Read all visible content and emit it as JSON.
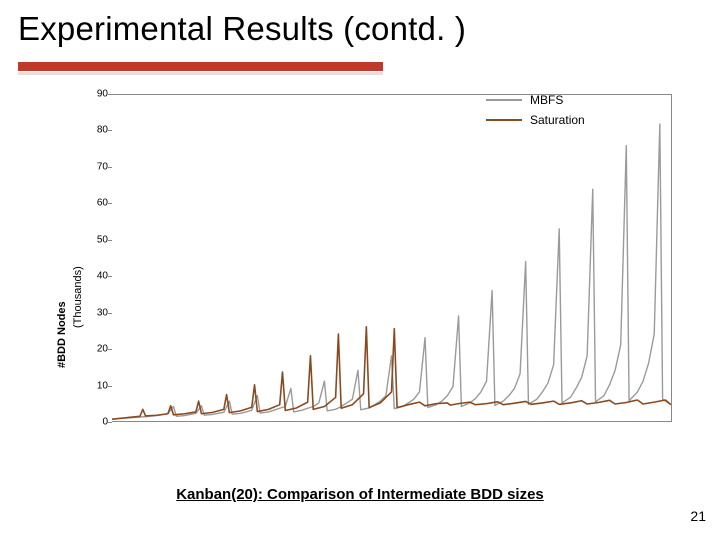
{
  "slide": {
    "title": "Experimental Results (contd. )",
    "caption": "Kanban(20): Comparison of Intermediate BDD sizes",
    "page_number": "21",
    "title_fontsize": 33,
    "underline_color": "#c0392b"
  },
  "chart": {
    "type": "line",
    "background_color": "#ffffff",
    "border_color": "#888888",
    "ylabel_main": "#BDD Nodes",
    "ylabel_sub": "(Thousands)",
    "label_fontsize": 11,
    "ylim": [
      0,
      90
    ],
    "ytick_step": 10,
    "yticks": [
      0,
      10,
      20,
      30,
      40,
      50,
      60,
      70,
      80,
      90
    ],
    "xlim": [
      0,
      100
    ],
    "legend": {
      "position": "top-right",
      "items": [
        {
          "label": "MBFS",
          "color": "#9a9a9a"
        },
        {
          "label": "Saturation",
          "color": "#8a4a1f"
        }
      ]
    },
    "series": [
      {
        "name": "MBFS",
        "color": "#9a9a9a",
        "line_width": 1.4,
        "points": [
          [
            0,
            0.5
          ],
          [
            4,
            1
          ],
          [
            6,
            1.2
          ],
          [
            8,
            1.5
          ],
          [
            10,
            2
          ],
          [
            11,
            4
          ],
          [
            11.5,
            1.3
          ],
          [
            13,
            1.5
          ],
          [
            14,
            1.8
          ],
          [
            15,
            2.1
          ],
          [
            16,
            4.2
          ],
          [
            16.5,
            1.6
          ],
          [
            18,
            1.8
          ],
          [
            19,
            2.1
          ],
          [
            20,
            2.4
          ],
          [
            21,
            5.5
          ],
          [
            21.5,
            1.9
          ],
          [
            23,
            2.1
          ],
          [
            24,
            2.5
          ],
          [
            25,
            3
          ],
          [
            26,
            7
          ],
          [
            26.5,
            2.2
          ],
          [
            28,
            2.5
          ],
          [
            29,
            3
          ],
          [
            30,
            3.5
          ],
          [
            31,
            4
          ],
          [
            32,
            9
          ],
          [
            32.5,
            2.5
          ],
          [
            34,
            3
          ],
          [
            35,
            3.5
          ],
          [
            36,
            4
          ],
          [
            37,
            5
          ],
          [
            38,
            11
          ],
          [
            38.5,
            2.8
          ],
          [
            40,
            3.2
          ],
          [
            41,
            4
          ],
          [
            42,
            5
          ],
          [
            43,
            6
          ],
          [
            44,
            14
          ],
          [
            44.5,
            3.1
          ],
          [
            46,
            3.6
          ],
          [
            47,
            4.5
          ],
          [
            48,
            5.5
          ],
          [
            49,
            7
          ],
          [
            50,
            18
          ],
          [
            50.5,
            3.4
          ],
          [
            52,
            4
          ],
          [
            53,
            5
          ],
          [
            54,
            6
          ],
          [
            55,
            8
          ],
          [
            56,
            23
          ],
          [
            56.5,
            3.7
          ],
          [
            58,
            4.5
          ],
          [
            59,
            5.5
          ],
          [
            60,
            7
          ],
          [
            61,
            9.5
          ],
          [
            62,
            29
          ],
          [
            62.5,
            4
          ],
          [
            64,
            5
          ],
          [
            65,
            6.2
          ],
          [
            66,
            8
          ],
          [
            67,
            11
          ],
          [
            68,
            36
          ],
          [
            68.5,
            4.3
          ],
          [
            70,
            5.5
          ],
          [
            71,
            7
          ],
          [
            72,
            9
          ],
          [
            73,
            13
          ],
          [
            74,
            44
          ],
          [
            74.5,
            4.6
          ],
          [
            76,
            6
          ],
          [
            77,
            8
          ],
          [
            78,
            10.5
          ],
          [
            79,
            15.5
          ],
          [
            80,
            53
          ],
          [
            80.5,
            5
          ],
          [
            82,
            6.5
          ],
          [
            83,
            9
          ],
          [
            84,
            12
          ],
          [
            85,
            18
          ],
          [
            86,
            64
          ],
          [
            86.5,
            5.3
          ],
          [
            88,
            7
          ],
          [
            89,
            10
          ],
          [
            90,
            14
          ],
          [
            91,
            21
          ],
          [
            92,
            76
          ],
          [
            92.5,
            5.6
          ],
          [
            94,
            8
          ],
          [
            95,
            11
          ],
          [
            96,
            16
          ],
          [
            97,
            24
          ],
          [
            98,
            82
          ],
          [
            98.5,
            6
          ],
          [
            100,
            4.5
          ]
        ]
      },
      {
        "name": "Saturation",
        "color": "#8a4a1f",
        "line_width": 1.6,
        "points": [
          [
            0,
            0.5
          ],
          [
            3,
            1
          ],
          [
            5,
            1.3
          ],
          [
            5.5,
            3.2
          ],
          [
            6,
            1.4
          ],
          [
            8,
            1.6
          ],
          [
            10,
            2
          ],
          [
            10.5,
            4.2
          ],
          [
            11,
            1.7
          ],
          [
            13,
            2
          ],
          [
            15,
            2.5
          ],
          [
            15.5,
            5.5
          ],
          [
            16,
            2
          ],
          [
            18,
            2.4
          ],
          [
            20,
            3.2
          ],
          [
            20.5,
            7.3
          ],
          [
            21,
            2.3
          ],
          [
            23,
            2.8
          ],
          [
            25,
            3.8
          ],
          [
            25.5,
            10
          ],
          [
            26,
            2.6
          ],
          [
            28,
            3.2
          ],
          [
            30,
            4.5
          ],
          [
            30.5,
            13.5
          ],
          [
            31,
            2.9
          ],
          [
            33,
            3.6
          ],
          [
            35,
            5.2
          ],
          [
            35.5,
            18
          ],
          [
            36,
            3.2
          ],
          [
            38,
            4
          ],
          [
            40,
            6.5
          ],
          [
            40.5,
            24
          ],
          [
            41,
            3.5
          ],
          [
            43,
            4.5
          ],
          [
            45,
            7.5
          ],
          [
            45.5,
            26
          ],
          [
            46,
            3.7
          ],
          [
            48,
            5
          ],
          [
            50,
            8
          ],
          [
            50.5,
            25.5
          ],
          [
            51,
            3.7
          ],
          [
            53,
            4.5
          ],
          [
            55,
            5.2
          ],
          [
            56,
            4.2
          ],
          [
            58,
            4.8
          ],
          [
            60,
            5
          ],
          [
            60.5,
            4.4
          ],
          [
            62,
            4.8
          ],
          [
            64,
            5.2
          ],
          [
            65,
            4.5
          ],
          [
            67,
            4.8
          ],
          [
            69,
            5.3
          ],
          [
            70,
            4.5
          ],
          [
            72,
            4.9
          ],
          [
            74,
            5.4
          ],
          [
            75,
            4.6
          ],
          [
            77,
            5
          ],
          [
            79,
            5.5
          ],
          [
            80,
            4.6
          ],
          [
            82,
            5
          ],
          [
            84,
            5.6
          ],
          [
            85,
            4.7
          ],
          [
            87,
            5.1
          ],
          [
            89,
            5.7
          ],
          [
            90,
            4.7
          ],
          [
            92,
            5.1
          ],
          [
            94,
            5.8
          ],
          [
            95,
            4.7
          ],
          [
            97,
            5.2
          ],
          [
            99,
            5.8
          ],
          [
            100,
            4.5
          ]
        ]
      }
    ]
  }
}
